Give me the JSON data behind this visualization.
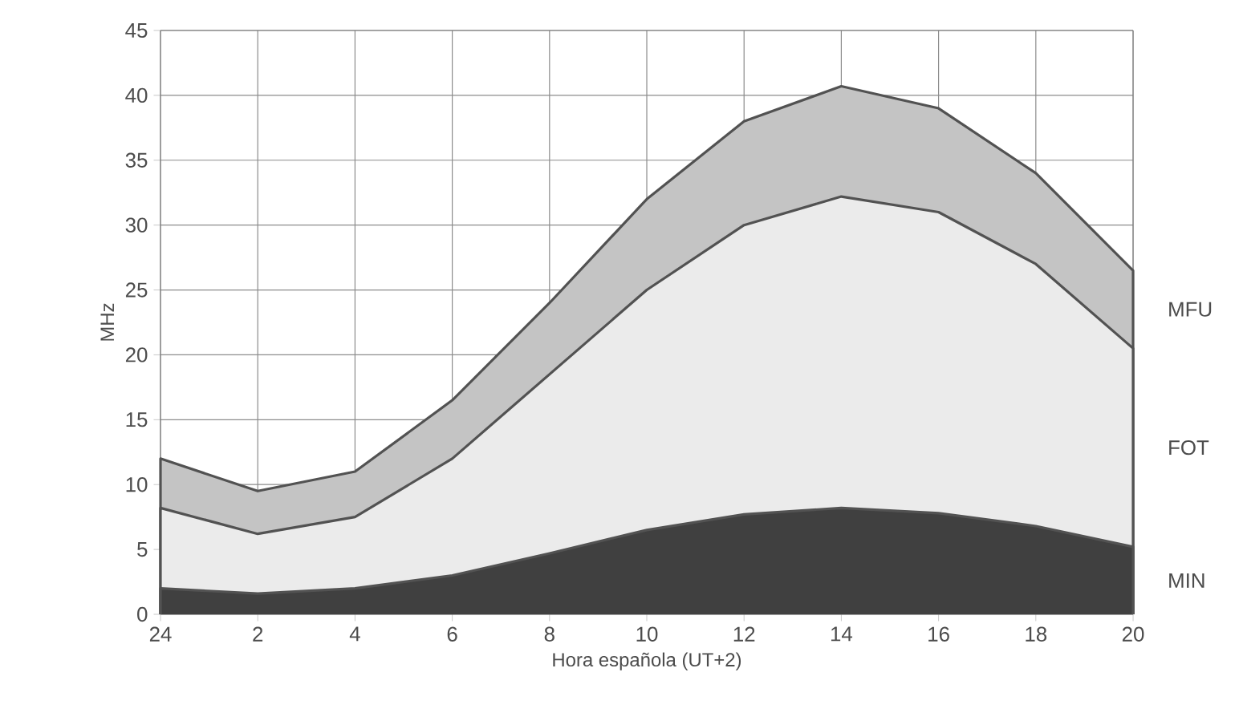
{
  "chart_data": {
    "type": "area",
    "xlabel": "Hora española (UT+2)",
    "ylabel": "MHz",
    "categories": [
      "24",
      "2",
      "4",
      "6",
      "8",
      "10",
      "12",
      "14",
      "16",
      "18",
      "20"
    ],
    "series": [
      {
        "name": "MFU",
        "color": "#c4c4c4",
        "values": [
          12,
          9.5,
          11,
          16.5,
          24,
          32,
          38,
          40.7,
          39,
          34,
          26.5
        ]
      },
      {
        "name": "FOT",
        "color": "#ebebeb",
        "values": [
          8.2,
          6.2,
          7.5,
          12,
          18.5,
          25,
          30,
          32.2,
          31,
          27,
          20.5
        ]
      },
      {
        "name": "MIN",
        "color": "#404040",
        "values": [
          2,
          1.6,
          2,
          3,
          4.7,
          6.5,
          7.7,
          8.2,
          7.8,
          6.8,
          5.2
        ]
      }
    ],
    "ylim": [
      0,
      45
    ],
    "yticks": [
      0,
      5,
      10,
      15,
      20,
      25,
      30,
      35,
      40,
      45
    ],
    "grid": true
  }
}
